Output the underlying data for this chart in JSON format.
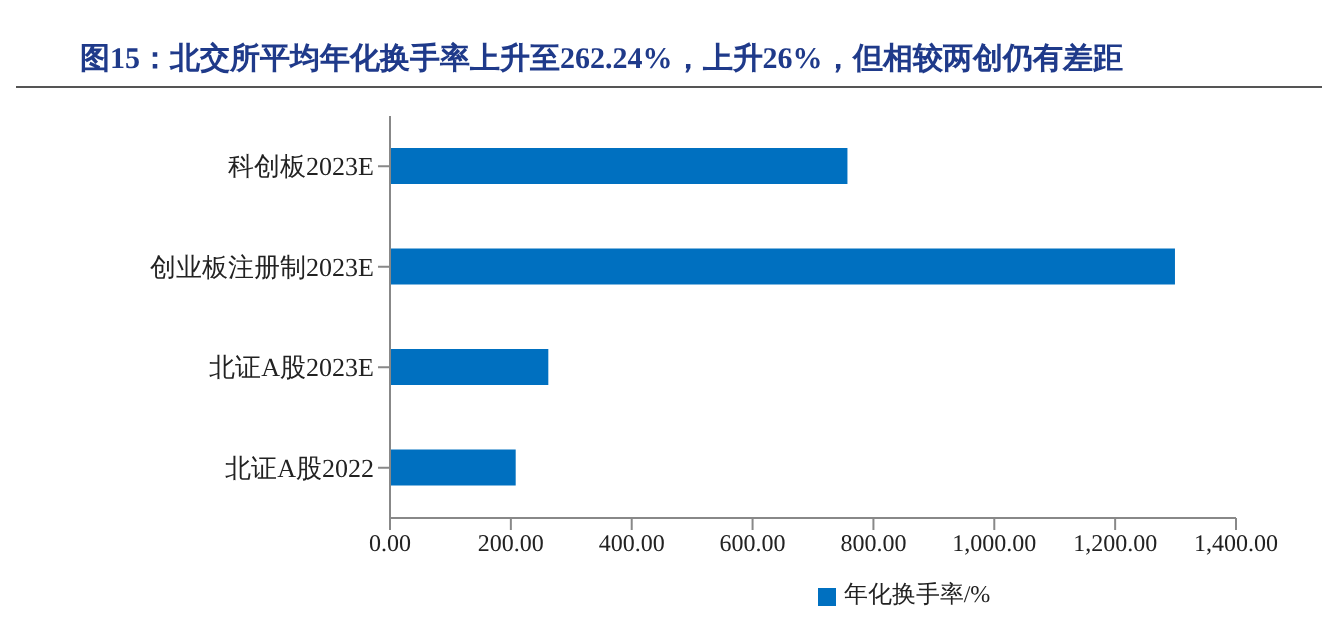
{
  "chart_data": {
    "type": "bar",
    "orientation": "horizontal",
    "title": "图15：北交所平均年化换手率上升至262.24%，上升26%，但相较两创仍有差距",
    "categories": [
      "科创板2023E",
      "创业板注册制2023E",
      "北证A股2023E",
      "北证A股2022"
    ],
    "series": [
      {
        "name": "年化换手率/%",
        "color": "#0070c0",
        "values": [
          757,
          1299,
          262,
          208
        ]
      }
    ],
    "xlim": [
      0,
      1400
    ],
    "xticks": [
      {
        "value": 0,
        "label": "0.00"
      },
      {
        "value": 200,
        "label": "200.00"
      },
      {
        "value": 400,
        "label": "400.00"
      },
      {
        "value": 600,
        "label": "600.00"
      },
      {
        "value": 800,
        "label": "800.00"
      },
      {
        "value": 1000,
        "label": "1,000.00"
      },
      {
        "value": 1200,
        "label": "1,200.00"
      },
      {
        "value": 1400,
        "label": "1,400.00"
      }
    ],
    "grid": false,
    "legend": "bottom"
  }
}
